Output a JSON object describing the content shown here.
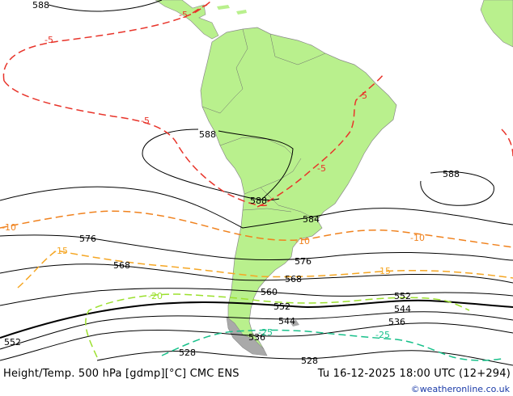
{
  "header": {
    "title": "Height/Temp. 500 hPa [gdmp][°C] CMC ENS",
    "datetime": "Tu 16-12-2025 18:00 UTC (12+294)"
  },
  "footer": {
    "credit": "©weatheronline.co.uk"
  },
  "colors": {
    "land": "#b9f08d",
    "land_gray": "#a9a9a9",
    "height": "#000000",
    "temp_warm": "#e8342a",
    "temp_mid": "#f0821e",
    "temp_cool": "#f5a623",
    "temp_green": "#9be02d",
    "temp_teal": "#18c08a"
  },
  "height_labels": {
    "h588_top": "588",
    "h588_west": "588",
    "h588_andes": "588",
    "h588_east": "588",
    "h584": "584",
    "h576_west": "576",
    "h576_east": "576",
    "h568_west": "568",
    "h568_east": "568",
    "h560": "560",
    "h552_west": "552",
    "h552_mid": "552",
    "h552_east": "552",
    "h544_mid": "544",
    "h544_east": "544",
    "h536_mid": "536",
    "h536_east": "536",
    "h528_mid": "528",
    "h528_east": "528"
  },
  "temp_labels": {
    "t5_nw": "-5",
    "t5_cam": "-5",
    "t5_pac": "-5",
    "t5_br": "-5",
    "t5_ne": "-5",
    "t10_w": "-10",
    "t10_arg": "-10",
    "t10_e": "-10",
    "t15_w": "-15",
    "t15_e": "-15",
    "t20": "-20",
    "t25_w": "-25",
    "t25_e": "-25"
  }
}
